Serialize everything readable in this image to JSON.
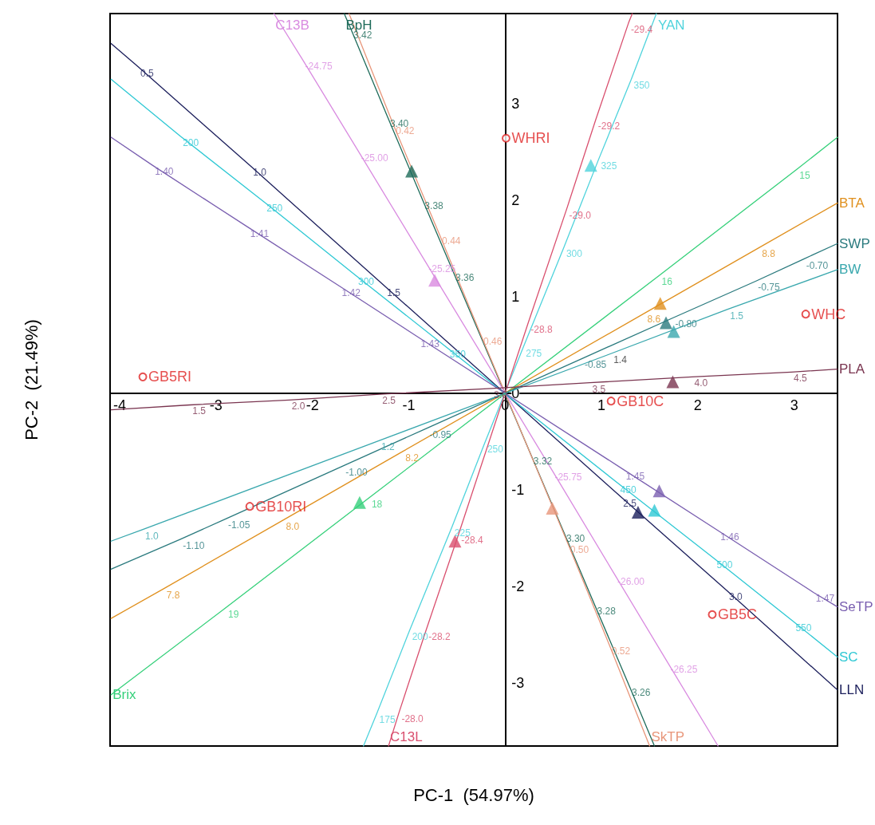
{
  "chart_data": {
    "type": "scatter",
    "xlabel": "PC-1  (54.97%)",
    "ylabel": "PC-2  (21.49%)",
    "xlim": [
      -4.1,
      3.45
    ],
    "ylim": [
      -3.65,
      3.93
    ],
    "xticks": [
      -4,
      -3,
      -2,
      -1,
      0,
      1,
      2,
      3
    ],
    "yticks": [
      -3,
      -2,
      -1,
      0,
      1,
      2,
      3
    ],
    "grid": false,
    "series": [
      {
        "name": "BpH",
        "type": "line",
        "marker": "none",
        "color": "#1e6b5a",
        "x": [
          1.55,
          1.29,
          0.93,
          0.61,
          0.27,
          -0.54,
          -0.86,
          -1.22,
          -1.6,
          -1.67
        ],
        "values": [
          -3.65,
          -3.03,
          -2.19,
          -1.44,
          -0.64,
          1.26,
          2.01,
          2.86,
          3.77,
          3.93
        ]
      },
      {
        "name": "SkTP",
        "type": "line",
        "marker": "none",
        "color": "#e8967a",
        "x": [
          -1.62,
          -1.16,
          -0.68,
          -0.25,
          0.65,
          1.08,
          1.5
        ],
        "values": [
          3.93,
          2.78,
          1.64,
          0.6,
          -1.55,
          -2.6,
          -3.65
        ]
      },
      {
        "name": "C13B",
        "type": "line",
        "marker": "none",
        "color": "#d98be0",
        "x": [
          2.21,
          1.69,
          1.14,
          0.49,
          -0.82,
          -1.52,
          -2.1,
          -2.4
        ],
        "values": [
          -3.65,
          -2.79,
          -1.88,
          -0.8,
          1.35,
          2.5,
          3.45,
          3.93
        ]
      },
      {
        "name": "YAN",
        "type": "line",
        "marker": "none",
        "color": "#4fd3dc",
        "x": [
          -1.47,
          -1.33,
          -0.99,
          -0.55,
          -0.21,
          0.19,
          0.61,
          0.97,
          1.31,
          1.57
        ],
        "values": [
          -3.65,
          -3.31,
          -2.45,
          -1.38,
          -0.51,
          0.48,
          1.51,
          2.42,
          3.25,
          3.93
        ]
      },
      {
        "name": "C13L",
        "type": "line",
        "marker": "none",
        "color": "#d94f6e",
        "x": [
          1.32,
          1.28,
          0.94,
          0.64,
          0.24,
          -0.48,
          -0.82,
          -1.1,
          -1.21
        ],
        "values": [
          3.93,
          3.83,
          2.83,
          1.91,
          0.73,
          -1.45,
          -2.45,
          -3.3,
          -3.65
        ]
      },
      {
        "name": "LLN",
        "type": "line",
        "marker": "none",
        "color": "#1c1f5c",
        "x": [
          -4.09,
          -3.81,
          -2.64,
          -1.25,
          1.2,
          2.3,
          3.45
        ],
        "values": [
          3.62,
          3.38,
          2.35,
          1.11,
          -1.07,
          -2.04,
          -3.07
        ]
      },
      {
        "name": "SC",
        "type": "line",
        "marker": "none",
        "color": "#2ec8d4",
        "x": [
          -4.09,
          -3.37,
          -2.5,
          -1.55,
          -0.6,
          1.17,
          2.17,
          2.99,
          3.45
        ],
        "values": [
          3.25,
          2.66,
          1.98,
          1.22,
          0.47,
          -0.93,
          -1.71,
          -2.36,
          -2.73
        ]
      },
      {
        "name": "SeTP",
        "type": "line",
        "marker": "none",
        "color": "#7a5fb0",
        "x": [
          -4.09,
          -3.66,
          -2.67,
          -1.72,
          -0.9,
          1.23,
          2.21,
          3.2,
          3.45
        ],
        "values": [
          2.65,
          2.36,
          1.72,
          1.11,
          0.58,
          -0.79,
          -1.42,
          -2.06,
          -2.21
        ]
      },
      {
        "name": "Brix",
        "type": "line",
        "marker": "none",
        "color": "#35d07a",
        "x": [
          3.45,
          3.03,
          1.6,
          -1.41,
          -2.9,
          -4.09
        ],
        "values": [
          2.65,
          2.32,
          1.22,
          -1.08,
          -2.22,
          -3.12
        ]
      },
      {
        "name": "BTA",
        "type": "line",
        "marker": "none",
        "color": "#e0901e",
        "x": [
          -4.09,
          -3.54,
          -2.3,
          -1.06,
          1.45,
          2.64,
          3.45
        ],
        "values": [
          -2.33,
          -2.02,
          -1.31,
          -0.6,
          0.83,
          1.51,
          1.97
        ]
      },
      {
        "name": "SWP",
        "type": "line",
        "marker": "none",
        "color": "#2a7a7e",
        "x": [
          -4.09,
          -3.37,
          -2.9,
          -1.68,
          -0.81,
          0.8,
          1.74,
          2.6,
          3.1,
          3.45
        ],
        "values": [
          -1.82,
          -1.51,
          -1.3,
          -0.75,
          -0.36,
          0.36,
          0.78,
          1.16,
          1.39,
          1.55
        ]
      },
      {
        "name": "BW",
        "type": "line",
        "marker": "none",
        "color": "#3aa8ae",
        "x": [
          -4.09,
          -3.76,
          -1.31,
          1.07,
          2.31,
          3.45
        ],
        "values": [
          -1.53,
          -1.41,
          -0.49,
          0.4,
          0.87,
          1.28
        ]
      },
      {
        "name": "PLA",
        "type": "line",
        "marker": "none",
        "color": "#7a3550",
        "x": [
          -4.09,
          -3.27,
          -2.24,
          -1.3,
          -0.14,
          0.88,
          1.94,
          2.97,
          3.45
        ],
        "values": [
          -0.17,
          -0.12,
          -0.07,
          -0.01,
          0.05,
          0.11,
          0.17,
          0.22,
          0.25
        ]
      },
      {
        "type": "scatter",
        "marker": "triangle",
        "colors": [
          "#1e6b5a",
          "#e8967a",
          "#d98be0",
          "#4fd3dc",
          "#d94f6e",
          "#1c1f5c",
          "#2ec8d4",
          "#7a5fb0",
          "#35d07a",
          "#e0901e",
          "#2a7a7e",
          "#3aa8ae",
          "#7a3550"
        ],
        "x": [
          -0.97,
          0.49,
          -0.73,
          0.89,
          -0.52,
          1.38,
          1.55,
          1.6,
          -1.51,
          1.61,
          1.67,
          1.75,
          1.74
        ],
        "values": [
          2.3,
          -1.19,
          1.17,
          2.36,
          -1.53,
          -1.23,
          -1.21,
          -1.01,
          -1.13,
          0.93,
          0.73,
          0.64,
          0.12
        ]
      },
      {
        "type": "scatter",
        "marker": "circle",
        "color": "#e02424",
        "x": [
          0.01,
          3.12,
          -3.76,
          1.1,
          -2.65,
          2.15
        ],
        "values": [
          2.64,
          0.82,
          0.17,
          -0.08,
          -1.17,
          -2.29
        ]
      }
    ],
    "annotations": [
      {
        "text": "3.26",
        "x": 1.29,
        "y": -3.03
      },
      {
        "text": "3.28",
        "x": 0.93,
        "y": -2.19
      },
      {
        "text": "3.30",
        "x": 0.61,
        "y": -1.44
      },
      {
        "text": "3.32",
        "x": 0.27,
        "y": -0.64
      },
      {
        "text": "3.36",
        "x": -0.54,
        "y": 1.26
      },
      {
        "text": "3.38",
        "x": -0.86,
        "y": 2.01
      },
      {
        "text": "3.40",
        "x": -1.22,
        "y": 2.86
      },
      {
        "text": "3.42",
        "x": -1.6,
        "y": 3.77
      },
      {
        "text": "0.42",
        "x": -1.16,
        "y": 2.78
      },
      {
        "text": "0.44",
        "x": -0.68,
        "y": 1.64
      },
      {
        "text": "0.46",
        "x": -0.25,
        "y": 0.6
      },
      {
        "text": "0.50",
        "x": 0.65,
        "y": -1.55
      },
      {
        "text": "0.52",
        "x": 1.08,
        "y": -2.6
      },
      {
        "text": "-26.25",
        "x": 1.69,
        "y": -2.79
      },
      {
        "text": "-26.00",
        "x": 1.14,
        "y": -1.88
      },
      {
        "text": "-25.75",
        "x": 0.49,
        "y": -0.8
      },
      {
        "text": "-25.25",
        "x": -0.82,
        "y": 1.35
      },
      {
        "text": "-25.00",
        "x": -1.52,
        "y": 2.5
      },
      {
        "text": "-24.75",
        "x": -2.1,
        "y": 3.45
      },
      {
        "text": "175",
        "x": -1.33,
        "y": -3.31
      },
      {
        "text": "200",
        "x": -0.99,
        "y": -2.45
      },
      {
        "text": "225",
        "x": -0.55,
        "y": -1.38
      },
      {
        "text": "250",
        "x": -0.21,
        "y": -0.51
      },
      {
        "text": "275",
        "x": 0.19,
        "y": 0.48
      },
      {
        "text": "300",
        "x": 0.61,
        "y": 1.51
      },
      {
        "text": "325",
        "x": 0.97,
        "y": 2.42
      },
      {
        "text": "350",
        "x": 1.31,
        "y": 3.25
      },
      {
        "text": "-29.4",
        "x": 1.28,
        "y": 3.83
      },
      {
        "text": "-29.2",
        "x": 0.94,
        "y": 2.83
      },
      {
        "text": "-29.0",
        "x": 0.64,
        "y": 1.91
      },
      {
        "text": "-28.8",
        "x": 0.24,
        "y": 0.73
      },
      {
        "text": "-28.4",
        "x": -0.48,
        "y": -1.45
      },
      {
        "text": "-28.2",
        "x": -0.82,
        "y": -2.45
      },
      {
        "text": "-28.0",
        "x": -1.1,
        "y": -3.3
      },
      {
        "text": "0.5",
        "x": -3.81,
        "y": 3.38
      },
      {
        "text": "1.0",
        "x": -2.64,
        "y": 2.35
      },
      {
        "text": "1.5",
        "x": -1.25,
        "y": 1.11
      },
      {
        "text": "2.5",
        "x": 1.2,
        "y": -1.07
      },
      {
        "text": "3.0",
        "x": 2.3,
        "y": -2.04
      },
      {
        "text": "200",
        "x": -3.37,
        "y": 2.66
      },
      {
        "text": "250",
        "x": -2.5,
        "y": 1.98
      },
      {
        "text": "300",
        "x": -1.55,
        "y": 1.22
      },
      {
        "text": "350",
        "x": -0.6,
        "y": 0.47
      },
      {
        "text": "450",
        "x": 1.17,
        "y": -0.93
      },
      {
        "text": "500",
        "x": 2.17,
        "y": -1.71
      },
      {
        "text": "550",
        "x": 2.99,
        "y": -2.36
      },
      {
        "text": "1.40",
        "x": -3.66,
        "y": 2.36
      },
      {
        "text": "1.41",
        "x": -2.67,
        "y": 1.72
      },
      {
        "text": "1.42",
        "x": -1.72,
        "y": 1.11
      },
      {
        "text": "1.43",
        "x": -0.9,
        "y": 0.58
      },
      {
        "text": "1.45",
        "x": 1.23,
        "y": -0.79
      },
      {
        "text": "1.46",
        "x": 2.21,
        "y": -1.42
      },
      {
        "text": "1.47",
        "x": 3.2,
        "y": -2.06
      },
      {
        "text": "15",
        "x": 3.03,
        "y": 2.32
      },
      {
        "text": "16",
        "x": 1.6,
        "y": 1.22
      },
      {
        "text": "18",
        "x": -1.41,
        "y": -1.08
      },
      {
        "text": "19",
        "x": -2.9,
        "y": -2.22
      },
      {
        "text": "7.8",
        "x": -3.54,
        "y": -2.02
      },
      {
        "text": "8.0",
        "x": -2.3,
        "y": -1.31
      },
      {
        "text": "8.2",
        "x": -1.06,
        "y": -0.6
      },
      {
        "text": "8.6",
        "x": 1.45,
        "y": 0.83
      },
      {
        "text": "8.8",
        "x": 2.64,
        "y": 1.51
      },
      {
        "text": "-1.10",
        "x": -3.37,
        "y": -1.51
      },
      {
        "text": "-1.05",
        "x": -2.9,
        "y": -1.3
      },
      {
        "text": "-1.00",
        "x": -1.68,
        "y": -0.75
      },
      {
        "text": "-0.95",
        "x": -0.81,
        "y": -0.36
      },
      {
        "text": "-0.85",
        "x": 0.8,
        "y": 0.36
      },
      {
        "text": "-0.80",
        "x": 1.74,
        "y": 0.78
      },
      {
        "text": "-0.75",
        "x": 2.6,
        "y": 1.16
      },
      {
        "text": "-0.70",
        "x": 3.1,
        "y": 1.39
      },
      {
        "text": "1.0",
        "x": -3.76,
        "y": -1.41
      },
      {
        "text": "1.2",
        "x": -1.31,
        "y": -0.49
      },
      {
        "text": "1.4",
        "x": 1.1,
        "y": 0.41
      },
      {
        "text": "1.5",
        "x": 2.31,
        "y": 0.87
      },
      {
        "text": "1.5",
        "x": -3.27,
        "y": -0.12
      },
      {
        "text": "2.0",
        "x": -2.24,
        "y": -0.07
      },
      {
        "text": "2.5",
        "x": -1.3,
        "y": -0.01
      },
      {
        "text": "3.0",
        "x": -0.14,
        "y": 0.05
      },
      {
        "text": "3.5",
        "x": 0.88,
        "y": 0.11
      },
      {
        "text": "4.0",
        "x": 1.94,
        "y": 0.17
      },
      {
        "text": "4.5",
        "x": 2.97,
        "y": 0.22
      },
      {
        "text": "WHRI",
        "x": 0.01,
        "y": 2.64
      },
      {
        "text": "WHC",
        "x": 3.12,
        "y": 0.82
      },
      {
        "text": "GB5RI",
        "x": -3.76,
        "y": 0.17
      },
      {
        "text": "GB10C",
        "x": 1.1,
        "y": -0.08
      },
      {
        "text": "GB10RI",
        "x": -2.65,
        "y": -1.17
      },
      {
        "text": "GB5C",
        "x": 2.15,
        "y": -2.29
      }
    ]
  }
}
